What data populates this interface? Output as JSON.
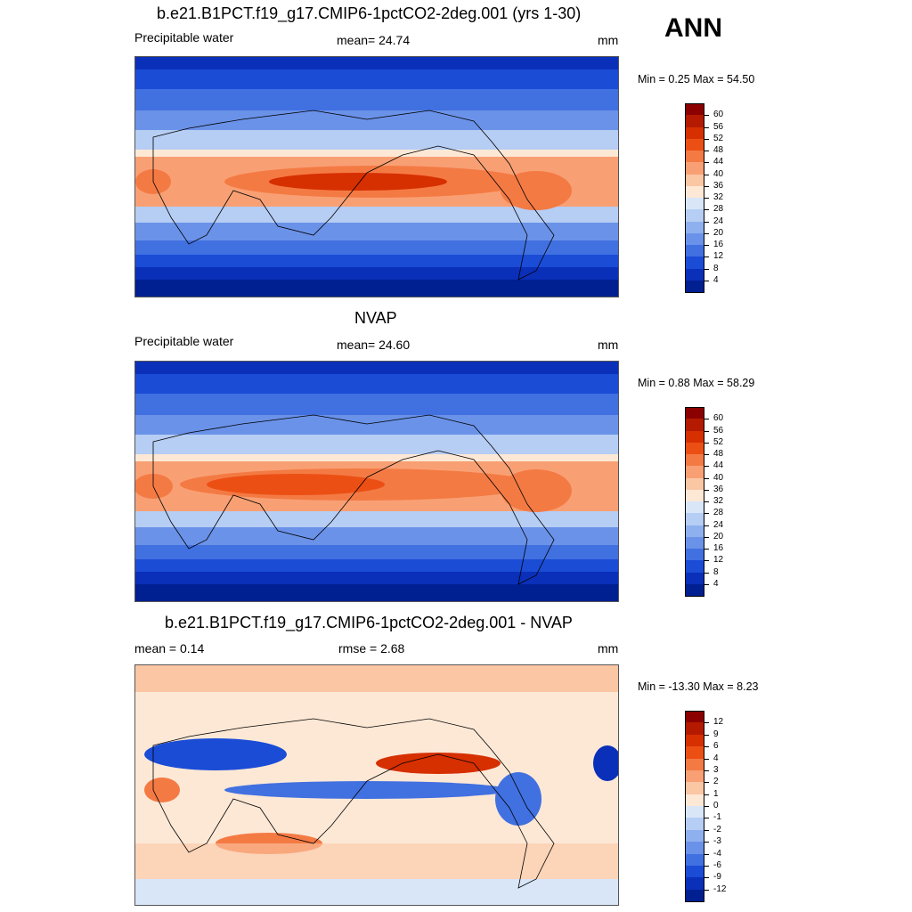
{
  "season": "ANN",
  "panels": [
    {
      "id": "model",
      "title": "b.e21.B1PCT.f19_g17.CMIP6-1pctCO2-2deg.001 (yrs 1-30)",
      "left_label": "Precipitable water",
      "center_label": "mean=  24.74",
      "units": "mm",
      "minmax": "Min =   0.25 Max =  54.50"
    },
    {
      "id": "obs",
      "title": "NVAP",
      "left_label": "Precipitable water",
      "center_label": "mean=  24.60",
      "units": "mm",
      "minmax": "Min =   0.88 Max =  58.29"
    },
    {
      "id": "diff",
      "title": "b.e21.B1PCT.f19_g17.CMIP6-1pctCO2-2deg.001 - NVAP",
      "left_label": "mean =   0.14",
      "center_label": "rmse =   2.68",
      "units": "mm",
      "minmax": "Min = -13.30 Max =   8.23"
    }
  ],
  "colorbars": {
    "abs": {
      "labels": [
        "60",
        "56",
        "52",
        "48",
        "44",
        "40",
        "36",
        "32",
        "28",
        "24",
        "20",
        "16",
        "12",
        "8",
        "4"
      ],
      "colors": [
        "#8b0000",
        "#b31a00",
        "#d62f00",
        "#ec4f14",
        "#f47a44",
        "#f8a074",
        "#fbc6a4",
        "#fde8d6",
        "#d8e6f8",
        "#b6cdf4",
        "#8fb0ee",
        "#6a92e8",
        "#4170e0",
        "#1a4cd6",
        "#0a2fb8",
        "#001f90"
      ]
    },
    "diff": {
      "labels": [
        "12",
        "9",
        "6",
        "4",
        "3",
        "2",
        "1",
        "0",
        "-1",
        "-2",
        "-3",
        "-4",
        "-6",
        "-9",
        "-12"
      ],
      "colors": [
        "#8b0000",
        "#b31a00",
        "#d62f00",
        "#ec4f14",
        "#f47a44",
        "#f8a074",
        "#fbc6a4",
        "#fde8d6",
        "#d8e6f8",
        "#b6cdf4",
        "#8fb0ee",
        "#6a92e8",
        "#4170e0",
        "#1a4cd6",
        "#0a2fb8",
        "#001f90"
      ]
    }
  },
  "chart_data": [
    {
      "type": "heatmap",
      "title": "b.e21.B1PCT.f19_g17.CMIP6-1pctCO2-2deg.001 (yrs 1-30)",
      "variable": "Precipitable water",
      "units": "mm",
      "mean": 24.74,
      "min": 0.25,
      "max": 54.5,
      "contour_levels": [
        4,
        8,
        12,
        16,
        20,
        24,
        28,
        32,
        36,
        40,
        44,
        48,
        52,
        56,
        60
      ]
    },
    {
      "type": "heatmap",
      "title": "NVAP",
      "variable": "Precipitable water",
      "units": "mm",
      "mean": 24.6,
      "min": 0.88,
      "max": 58.29,
      "contour_levels": [
        4,
        8,
        12,
        16,
        20,
        24,
        28,
        32,
        36,
        40,
        44,
        48,
        52,
        56,
        60
      ]
    },
    {
      "type": "heatmap",
      "title": "b.e21.B1PCT.f19_g17.CMIP6-1pctCO2-2deg.001 - NVAP",
      "units": "mm",
      "mean": 0.14,
      "rmse": 2.68,
      "min": -13.3,
      "max": 8.23,
      "contour_levels": [
        -12,
        -9,
        -6,
        -4,
        -3,
        -2,
        -1,
        0,
        1,
        2,
        3,
        4,
        6,
        9,
        12
      ]
    }
  ]
}
